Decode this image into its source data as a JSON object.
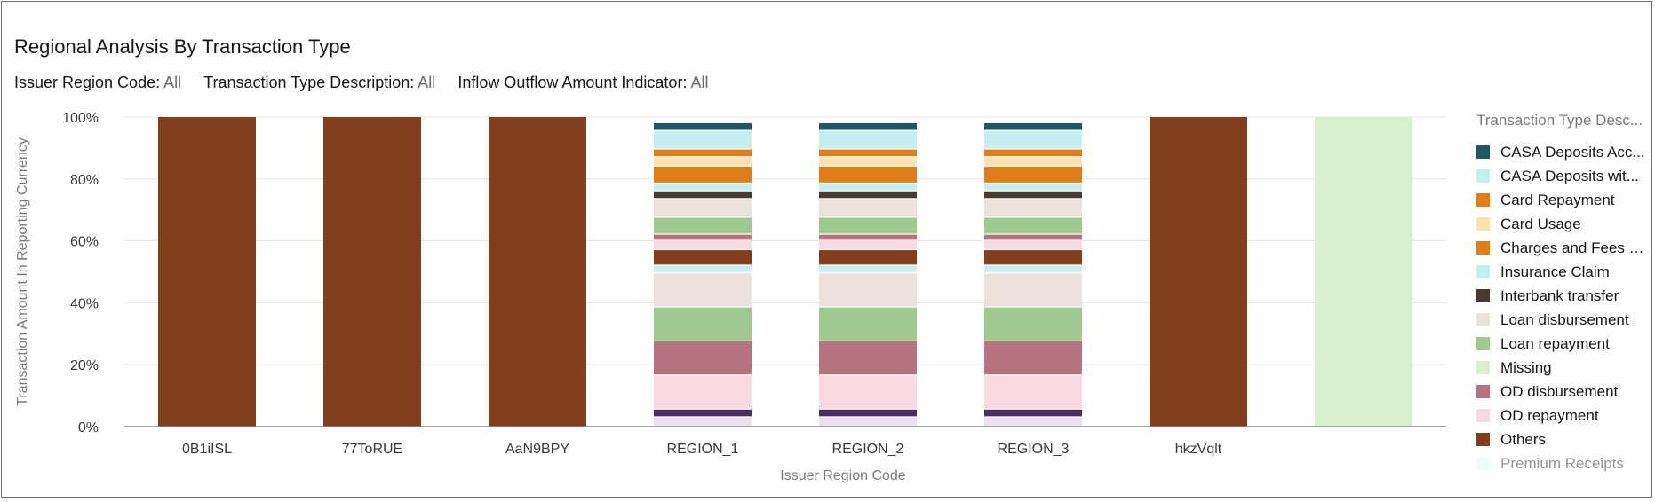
{
  "header": {
    "title": "Regional Analysis By Transaction Type"
  },
  "filters": [
    {
      "label": "Issuer Region Code:",
      "value": "All"
    },
    {
      "label": "Transaction Type Description:",
      "value": "All"
    },
    {
      "label": "Inflow Outflow Amount Indicator:",
      "value": "All"
    }
  ],
  "legend": {
    "title": "Transaction Type Desc...",
    "items": [
      {
        "label": "CASA Deposits Acc...",
        "color": "#1f5864"
      },
      {
        "label": "CASA Deposits wit...",
        "color": "#c5eef0"
      },
      {
        "label": "Card Repayment",
        "color": "#e07e1b"
      },
      {
        "label": "Card Usage",
        "color": "#fbe2b2"
      },
      {
        "label": "Charges and Fees R...",
        "color": "#e07e1b"
      },
      {
        "label": "Insurance Claim",
        "color": "#c5eef0"
      },
      {
        "label": "Interbank transfer",
        "color": "#4a3b30"
      },
      {
        "label": "Loan disbursement",
        "color": "#ede2db"
      },
      {
        "label": "Loan repayment",
        "color": "#a0c990"
      },
      {
        "label": "Missing",
        "color": "#d8f0cd"
      },
      {
        "label": "OD disbursement",
        "color": "#b5737f"
      },
      {
        "label": "OD repayment",
        "color": "#f9d9e0"
      },
      {
        "label": "Others",
        "color": "#833e1d"
      },
      {
        "label": "Premium Receipts",
        "color": "#dff4f4"
      }
    ]
  },
  "chart_data": {
    "type": "bar",
    "stacked": true,
    "percent_stacked": true,
    "xlabel": "Issuer Region Code",
    "ylabel": "Transaction Amount In Reporting Currency",
    "ylim": [
      0,
      100
    ],
    "yticks": [
      "0%",
      "20%",
      "40%",
      "60%",
      "80%",
      "100%"
    ],
    "categories": [
      "0B1iISL",
      "77ToRUE",
      "AaN9BPY",
      "REGION_1",
      "REGION_2",
      "REGION_3",
      "hkzVqlt",
      ""
    ],
    "grid": true,
    "legend_position": "right",
    "series": [
      {
        "name": "",
        "color": "#ebe0f0",
        "values": [
          0,
          0,
          0,
          3,
          3,
          3,
          0,
          0
        ]
      },
      {
        "name": "",
        "color": "#4b2d62",
        "values": [
          0,
          0,
          0,
          2.5,
          2.5,
          2.5,
          0,
          0
        ]
      },
      {
        "name": "OD repayment",
        "color": "#f9d9e0",
        "values": [
          0,
          0,
          0,
          11,
          11,
          11,
          0,
          0
        ]
      },
      {
        "name": "OD disbursement",
        "color": "#b5737f",
        "values": [
          0,
          0,
          0,
          11,
          11,
          11,
          0,
          0
        ]
      },
      {
        "name": "Loan repayment",
        "color": "#a0c990",
        "values": [
          0,
          0,
          0,
          11,
          11,
          11,
          0,
          0
        ]
      },
      {
        "name": "Loan disbursement",
        "color": "#ede2db",
        "values": [
          0,
          0,
          0,
          11,
          11,
          11,
          0,
          0
        ]
      },
      {
        "name": "Insurance Claim",
        "color": "#c5eef0",
        "values": [
          0,
          0,
          0,
          2.5,
          2.5,
          2.5,
          0,
          0
        ]
      },
      {
        "name": "Others",
        "color": "#833e1d",
        "values": [
          100,
          100,
          100,
          5,
          5,
          5,
          100,
          0
        ]
      },
      {
        "name": "",
        "color": "#f9d9e0",
        "values": [
          0,
          0,
          0,
          3,
          3,
          3,
          0,
          0
        ]
      },
      {
        "name": "OD disbursement",
        "color": "#b5737f",
        "values": [
          0,
          0,
          0,
          2,
          2,
          2,
          0,
          0
        ]
      },
      {
        "name": "Loan repayment",
        "color": "#a0c990",
        "values": [
          0,
          0,
          0,
          5.5,
          5.5,
          5.5,
          0,
          0
        ]
      },
      {
        "name": "Loan disbursement",
        "color": "#ede2db",
        "values": [
          0,
          0,
          0,
          6,
          6,
          6,
          0,
          0
        ]
      },
      {
        "name": "Interbank transfer",
        "color": "#4a3b30",
        "values": [
          0,
          0,
          0,
          2.5,
          2.5,
          2.5,
          0,
          0
        ]
      },
      {
        "name": "Insurance Claim",
        "color": "#c5eef0",
        "values": [
          0,
          0,
          0,
          2.5,
          2.5,
          2.5,
          0,
          0
        ]
      },
      {
        "name": "Charges and Fees R...",
        "color": "#e07e1b",
        "values": [
          0,
          0,
          0,
          5.5,
          5.5,
          5.5,
          0,
          0
        ]
      },
      {
        "name": "Card Usage",
        "color": "#fbe2b2",
        "values": [
          0,
          0,
          0,
          3,
          3,
          3,
          0,
          0
        ]
      },
      {
        "name": "Card Repayment",
        "color": "#e07e1b",
        "values": [
          0,
          0,
          0,
          2.5,
          2.5,
          2.5,
          0,
          0
        ]
      },
      {
        "name": "CASA Deposits wit...",
        "color": "#c5eef0",
        "values": [
          0,
          0,
          0,
          6,
          6,
          6,
          0,
          0
        ]
      },
      {
        "name": "CASA Deposits Acc...",
        "color": "#1f5864",
        "values": [
          0,
          0,
          0,
          2.5,
          2.5,
          2.5,
          0,
          0
        ]
      },
      {
        "name": "Missing",
        "color": "#d8f0cd",
        "values": [
          0,
          0,
          0,
          0,
          0,
          0,
          0,
          100
        ]
      }
    ]
  }
}
